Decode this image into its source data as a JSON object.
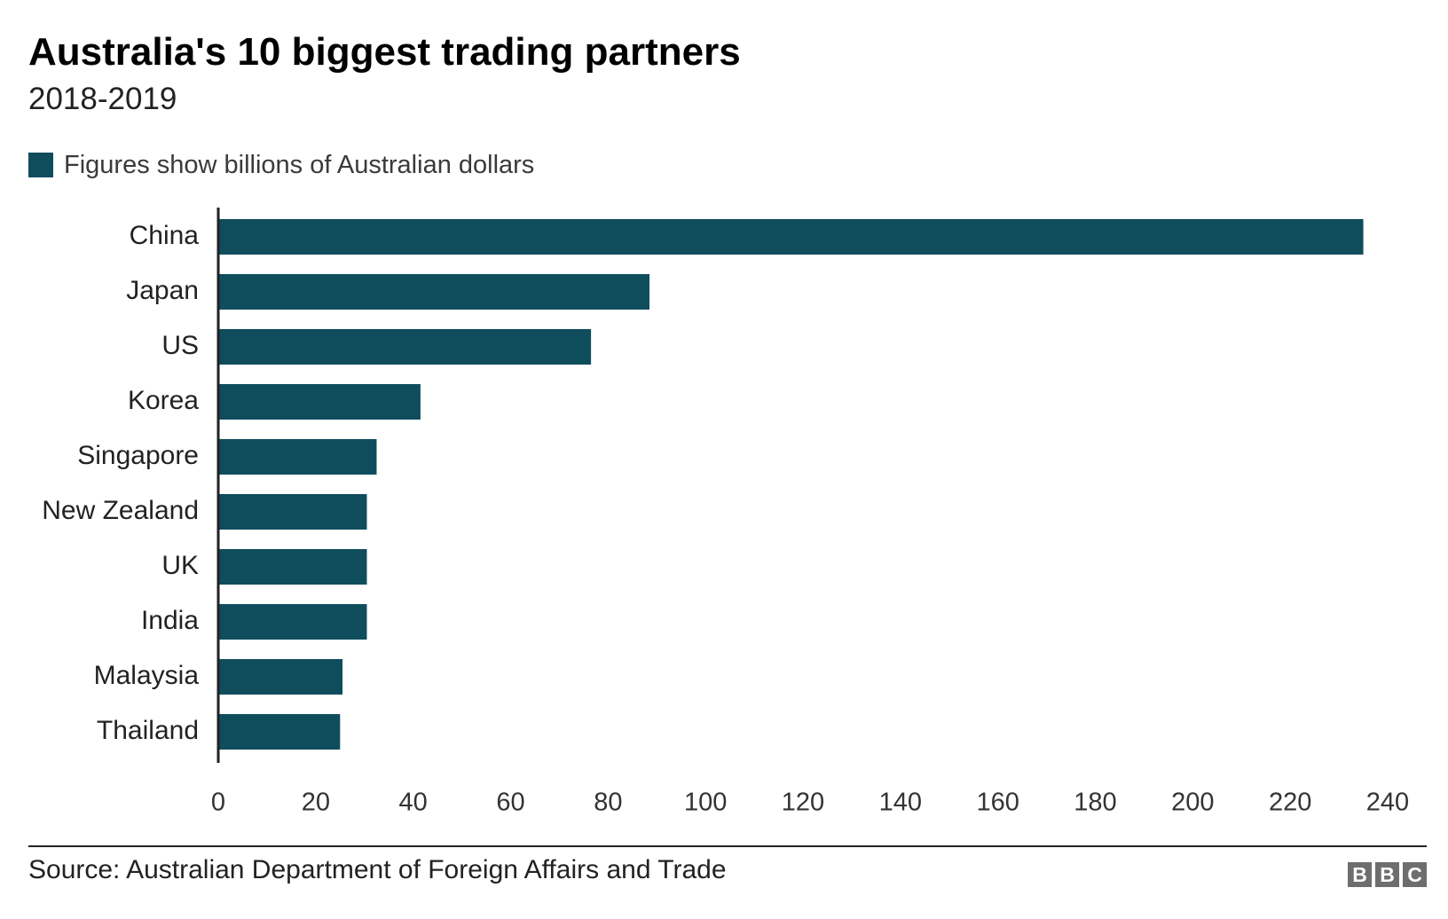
{
  "colors": {
    "bar": "#0f4d5d",
    "axis": "#222222",
    "text": "#222222",
    "logo": "#6e6e6e"
  },
  "header": {
    "title": "Australia's 10 biggest trading partners",
    "subtitle": "2018-2019"
  },
  "footer": {
    "source": "Source: Australian Department of Foreign Affairs and Trade",
    "logo_letters": [
      "B",
      "B",
      "C"
    ]
  },
  "chart_data": {
    "type": "bar",
    "orientation": "horizontal",
    "title": "Australia's 10 biggest trading partners",
    "subtitle": "2018-2019",
    "legend": {
      "position": "top-left",
      "entries": [
        "Figures show billions of Australian dollars"
      ]
    },
    "categories": [
      "China",
      "Japan",
      "US",
      "Korea",
      "Singapore",
      "New Zealand",
      "UK",
      "India",
      "Malaysia",
      "Thailand"
    ],
    "series": [
      {
        "name": "Figures show billions of Australian dollars",
        "values": [
          235,
          88.5,
          76.5,
          41.5,
          32.5,
          30.5,
          30.5,
          30.5,
          25.5,
          25
        ]
      }
    ],
    "xlim": [
      0,
      240
    ],
    "xticks": [
      0,
      20,
      40,
      60,
      80,
      100,
      120,
      140,
      160,
      180,
      200,
      220,
      240
    ],
    "grid": false,
    "xlabel": "",
    "ylabel": ""
  }
}
